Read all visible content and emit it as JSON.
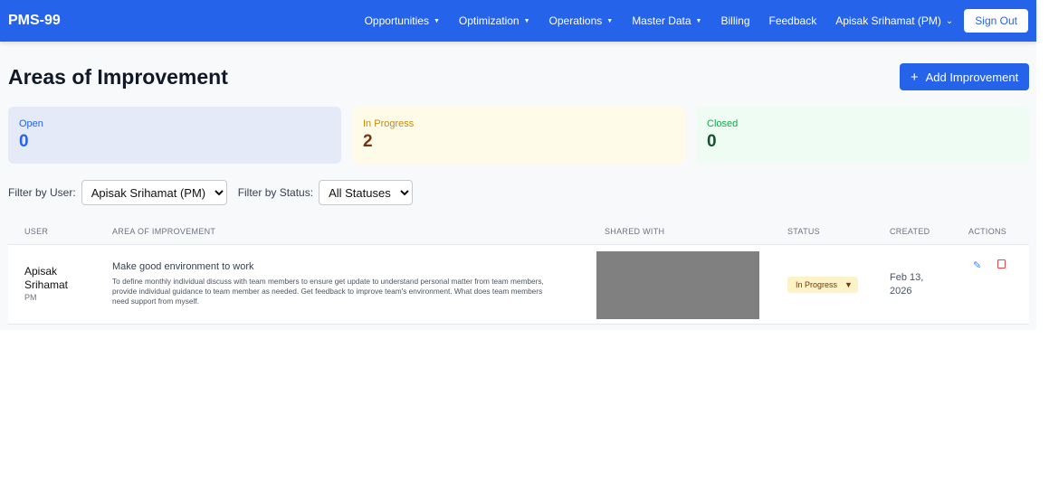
{
  "nav": {
    "brand": "PMS-99",
    "items": [
      {
        "label": "Opportunities",
        "dropdown": true
      },
      {
        "label": "Optimization",
        "dropdown": true
      },
      {
        "label": "Operations",
        "dropdown": true
      },
      {
        "label": "Master Data",
        "dropdown": true
      },
      {
        "label": "Billing",
        "dropdown": false
      },
      {
        "label": "Feedback",
        "dropdown": false
      }
    ],
    "user": "Apisak Srihamat (PM)",
    "sign_out": "Sign Out"
  },
  "page": {
    "title": "Areas of Improvement",
    "add_button": "Add Improvement"
  },
  "summary": [
    {
      "label": "Open",
      "value": "0",
      "bg": "#e4eaf7",
      "color": "#2563eb"
    },
    {
      "label": "In Progress",
      "value": "2",
      "bg": "#fefbe8",
      "color": "#ca8a04",
      "value_color": "#78350f"
    },
    {
      "label": "Closed",
      "value": "0",
      "bg": "#effcf3",
      "color": "#16a34a",
      "value_color": "#14532d"
    }
  ],
  "filters": {
    "user_label": "Filter by User:",
    "user_value": "Apisak Srihamat (PM)",
    "status_label": "Filter by Status:",
    "status_value": "All Statuses"
  },
  "table": {
    "headers": [
      "USER",
      "AREA OF IMPROVEMENT",
      "SHARED WITH",
      "STATUS",
      "CREATED",
      "ACTIONS"
    ],
    "rows": [
      {
        "user_name": "Apisak Srihamat",
        "user_role": "PM",
        "title": "Make good environment to work",
        "description": "To define monthly individual discuss with team members to ensure get update to understand personal matter from team members, provide individual guidance to team member as needed. Get feedback to improve team's environment. What does team members need support from myself.",
        "status": "In Progress",
        "created": "Feb 13, 2026"
      }
    ]
  }
}
